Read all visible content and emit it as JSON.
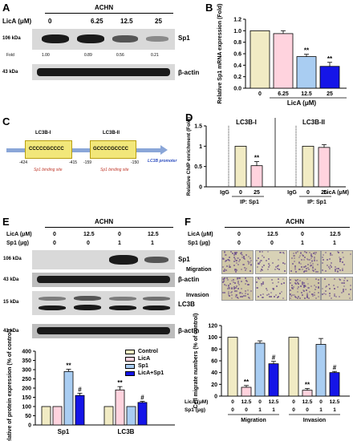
{
  "A": {
    "letter": "A",
    "cell": "ACHN",
    "dose_label": "LicA (μM)",
    "doses": [
      "0",
      "6.25",
      "12.5",
      "25"
    ],
    "mw1": "106 kDa",
    "mw2": "43 kDa",
    "protein1": "Sp1",
    "protein2": "β-actin",
    "fold_label": "Fold",
    "folds": [
      "1.00",
      "0.89",
      "0.56",
      "0.21"
    ]
  },
  "B": {
    "letter": "B",
    "chart_data": {
      "type": "bar",
      "categories": [
        "0",
        "6.25",
        "12.5",
        "25"
      ],
      "values": [
        1.0,
        0.95,
        0.55,
        0.38
      ],
      "errors": [
        0,
        0.05,
        0.04,
        0.07
      ],
      "significance": [
        "",
        "",
        "**",
        "**"
      ],
      "colors": [
        "#f1ebc4",
        "#ffd3de",
        "#a9cdf2",
        "#1515e8"
      ],
      "xlabel": "LicA (μM)",
      "ylabel": "Relative Sp1 mRNA expression (Fold)",
      "ylim": [
        0,
        1.2
      ],
      "yticks": [
        "0.0",
        "0.2",
        "0.4",
        "0.6",
        "0.8",
        "1.0",
        "1.2"
      ]
    }
  },
  "C": {
    "letter": "C",
    "site1": "LC3B-I",
    "site2": "LC3B-II",
    "seq1": "CCCCCGCCCC",
    "seq2": "GCCCCGCCCC",
    "pos": [
      "-424",
      "-415",
      "-159",
      "-150"
    ],
    "bind1": "Sp1 binding site",
    "bind2": "Sp1 binding site",
    "promoter": "LC3B promoter"
  },
  "D": {
    "letter": "D",
    "chart_data": {
      "type": "bar",
      "groups": [
        "LC3B-I",
        "LC3B-II"
      ],
      "categories": [
        "IgG",
        "0",
        "25"
      ],
      "series": [
        {
          "group": "LC3B-I",
          "values": [
            0,
            1.0,
            0.52
          ],
          "errors": [
            0,
            0,
            0.1
          ]
        },
        {
          "group": "LC3B-II",
          "values": [
            0,
            1.0,
            0.97
          ],
          "errors": [
            0,
            0,
            0.07
          ]
        }
      ],
      "significance": [
        "",
        "",
        "**",
        "",
        "",
        ""
      ],
      "colors": [
        "#f1ebc4",
        "#ffd3de"
      ],
      "ylabel": "Relative ChIP enrichment (Fold)",
      "xlabel_right": "LicA (μM)",
      "ip_label": "IP: Sp1",
      "ylim": [
        0,
        1.5
      ],
      "yticks": [
        "0",
        "0.5",
        "1",
        "1.5"
      ]
    }
  },
  "E": {
    "letter": "E",
    "cell": "ACHN",
    "lica_label": "LicA (μM)",
    "sp1_label": "Sp1 (μg)",
    "lica": [
      "0",
      "12.5",
      "0",
      "12.5"
    ],
    "sp1": [
      "0",
      "0",
      "1",
      "1"
    ],
    "mw": [
      "106 kDa",
      "43 kDa",
      "15 kDa",
      "43 kDa"
    ],
    "proteins": [
      "Sp1",
      "β-actin",
      "LC3B",
      "β-actin"
    ],
    "chart_data": {
      "type": "bar",
      "categories": [
        "Sp1",
        "LC3B"
      ],
      "series": [
        {
          "name": "Control",
          "values": [
            100,
            100
          ],
          "errors": [
            0,
            0
          ]
        },
        {
          "name": "LicA",
          "values": [
            100,
            190
          ],
          "errors": [
            0,
            18
          ]
        },
        {
          "name": "Sp1",
          "values": [
            290,
            100
          ],
          "errors": [
            12,
            0
          ]
        },
        {
          "name": "LicA+Sp1",
          "values": [
            160,
            122
          ],
          "errors": [
            12,
            6
          ]
        }
      ],
      "significance": [
        [
          "",
          "",
          "**",
          "#"
        ],
        [
          "",
          "**",
          "",
          "#"
        ]
      ],
      "colors": [
        "#f1ebc4",
        "#ffd3de",
        "#a9cdf2",
        "#1515e8"
      ],
      "ylabel": "Relative of protein expression (% of control)",
      "ylim": [
        0,
        400
      ],
      "yticks": [
        "0",
        "50",
        "100",
        "150",
        "200",
        "250",
        "300",
        "350",
        "400"
      ],
      "legend": "top-right"
    }
  },
  "F": {
    "letter": "F",
    "cell": "ACHN",
    "lica_label": "LicA (μM)",
    "sp1_label": "Sp1 (μg)",
    "lica": [
      "0",
      "12.5",
      "0",
      "12.5"
    ],
    "sp1": [
      "0",
      "0",
      "1",
      "1"
    ],
    "rows": [
      "Migration",
      "Invasion"
    ],
    "chart_data": {
      "type": "bar",
      "groups": [
        "Migration",
        "Invasion"
      ],
      "categories": [
        "0/0",
        "12.5/0",
        "0/1",
        "12.5/1"
      ],
      "lica_ticks": [
        "0",
        "12.5",
        "0",
        "12.5",
        "0",
        "12.5",
        "0",
        "12.5"
      ],
      "sp1_ticks": [
        "0",
        "0",
        "1",
        "1",
        "0",
        "0",
        "1",
        "1"
      ],
      "series": [
        {
          "group": "Migration",
          "values": [
            100,
            15,
            90,
            55
          ],
          "errors": [
            0,
            3,
            4,
            4
          ]
        },
        {
          "group": "Invasion",
          "values": [
            100,
            10,
            88,
            40
          ],
          "errors": [
            0,
            3,
            10,
            2
          ]
        }
      ],
      "significance": [
        [
          "",
          "**",
          "",
          "#"
        ],
        [
          "",
          "**",
          "",
          "#"
        ]
      ],
      "colors": [
        "#f1ebc4",
        "#ffd3de",
        "#a9cdf2",
        "#1515e8"
      ],
      "ylabel": "Cell migrate numbers (% of control)",
      "lica_row": "LicA (μM)",
      "sp1_row": "Sp1 (μg)",
      "ylim": [
        0,
        120
      ],
      "yticks": [
        "0",
        "20",
        "40",
        "60",
        "80",
        "100",
        "120"
      ]
    }
  }
}
